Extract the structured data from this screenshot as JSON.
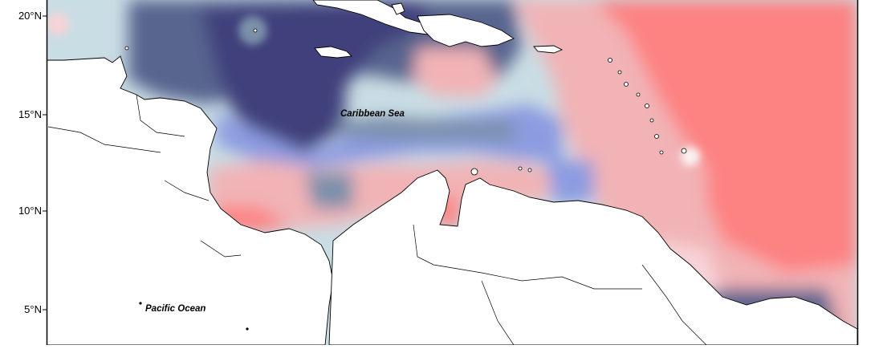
{
  "axis": {
    "y_ticks": [
      {
        "label": "20°N",
        "lat": 20
      },
      {
        "label": "15°N",
        "lat": 15
      },
      {
        "label": "10°N",
        "lat": 10
      },
      {
        "label": "5°N",
        "lat": 5
      }
    ]
  },
  "labels": {
    "caribbean": "Caribbean Sea",
    "pacific": "Pacific Ocean"
  },
  "palette": {
    "land": "#ffffff",
    "coastline": "#000000",
    "frame": "#000000",
    "cold_darkest": "#403f7c",
    "cold_dark": "#58658f",
    "cold_mid": "#7b90ab",
    "cold_periwinkle": "#8c9be0",
    "cold_light": "#c9dde4",
    "neutral": "#fbf3f3",
    "warm_light": "#f7d3d7",
    "warm_mid": "#f1b3b6",
    "warm_strong": "#f59a9c",
    "warm_peak": "#fd8282"
  }
}
